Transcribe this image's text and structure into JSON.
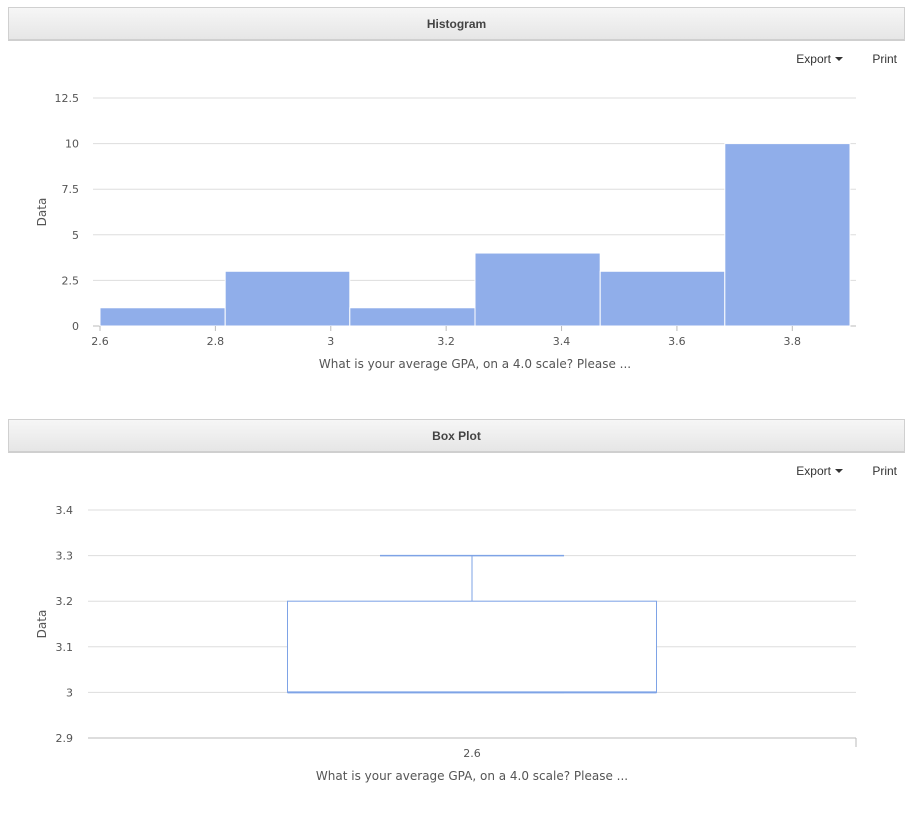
{
  "panels": [
    {
      "title": "Histogram",
      "export_label": "Export",
      "print_label": "Print"
    },
    {
      "title": "Box Plot",
      "export_label": "Export",
      "print_label": "Print"
    }
  ],
  "colors": {
    "bar_fill": "#90aeea",
    "box_stroke": "#7ea3e6",
    "grid": "#dddddd"
  },
  "chart_data": [
    {
      "type": "bar",
      "subtype": "histogram",
      "xlabel": "What is your average GPA, on a 4.0 scale? Please ...",
      "ylabel": "Data",
      "bins": [
        {
          "x0": 2.6,
          "x1": 2.817,
          "value": 1
        },
        {
          "x0": 2.817,
          "x1": 3.033,
          "value": 3
        },
        {
          "x0": 3.033,
          "x1": 3.25,
          "value": 1
        },
        {
          "x0": 3.25,
          "x1": 3.467,
          "value": 4
        },
        {
          "x0": 3.467,
          "x1": 3.683,
          "value": 3
        },
        {
          "x0": 3.683,
          "x1": 3.9,
          "value": 10
        }
      ],
      "xlim": [
        2.6,
        3.9
      ],
      "xticks": [
        2.6,
        2.8,
        3,
        3.2,
        3.4,
        3.6,
        3.8
      ],
      "xtick_labels": [
        "2.6",
        "2.8",
        "3",
        "3.2",
        "3.4",
        "3.6",
        "3.8"
      ],
      "ylim": [
        0,
        12.5
      ],
      "yticks": [
        0,
        2.5,
        5,
        7.5,
        10,
        12.5
      ],
      "ytick_labels": [
        "0",
        "2.5",
        "5",
        "7.5",
        "10",
        "12.5"
      ],
      "grid": true
    },
    {
      "type": "box",
      "xlabel": "What is your average GPA, on a 4.0 scale? Please ...",
      "ylabel": "Data",
      "categories": [
        "2.6"
      ],
      "boxes": [
        {
          "low": 3.0,
          "q1": 3.0,
          "median": 3.0,
          "q3": 3.2,
          "high": 3.3
        }
      ],
      "ylim": [
        2.9,
        3.4
      ],
      "yticks": [
        2.9,
        3,
        3.1,
        3.2,
        3.3,
        3.4
      ],
      "ytick_labels": [
        "2.9",
        "3",
        "3.1",
        "3.2",
        "3.3",
        "3.4"
      ],
      "grid": true
    }
  ]
}
